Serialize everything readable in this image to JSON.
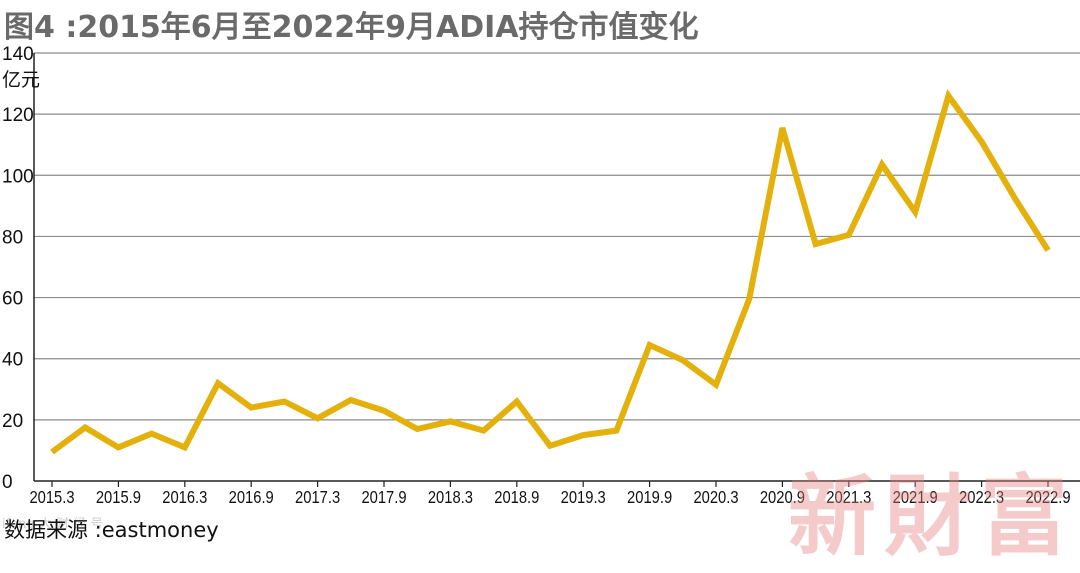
{
  "title": "图4 :2015年6月至2022年9月ADIA持仓市值变化",
  "source": "数据来源 :eastmoney",
  "watermark": "新財富",
  "watermark_small": "ifeng 大 财 经 号",
  "colors": {
    "line": "#E3B00C",
    "grid": "#8c8c8c",
    "title": "#6a6a6a"
  },
  "chart_data": {
    "type": "line",
    "title": "图4 :2015年6月至2022年9月ADIA持仓市值变化",
    "ylabel": "亿元",
    "xlabel": "",
    "ylim": [
      0,
      140
    ],
    "yticks": [
      0,
      20,
      40,
      60,
      80,
      100,
      120,
      140
    ],
    "xtick_labels": [
      "2015.3",
      "2015.9",
      "2016.3",
      "2016.9",
      "2017.3",
      "2017.9",
      "2018.3",
      "2018.9",
      "2019.3",
      "2019.9",
      "2020.3",
      "2020.9",
      "2021.3",
      "2021.9",
      "2022.3",
      "2022.9"
    ],
    "grid": true,
    "x": [
      "2015.3",
      "2015.6",
      "2015.9",
      "2015.12",
      "2016.3",
      "2016.6",
      "2016.9",
      "2016.12",
      "2017.3",
      "2017.6",
      "2017.9",
      "2017.12",
      "2018.3",
      "2018.6",
      "2018.9",
      "2018.12",
      "2019.3",
      "2019.6",
      "2019.9",
      "2019.12",
      "2020.3",
      "2020.6",
      "2020.9",
      "2020.12",
      "2021.3",
      "2021.6",
      "2021.9",
      "2021.12",
      "2022.3",
      "2022.6",
      "2022.9"
    ],
    "series": [
      {
        "values": [
          9.5,
          17.5,
          11,
          15.5,
          11,
          32,
          24,
          26,
          20.5,
          26.5,
          23,
          17,
          19.5,
          16.5,
          26,
          11.5,
          15,
          16.5,
          44.5,
          39.5,
          31.5,
          59.5,
          115.5,
          77.5,
          80.5,
          103.5,
          88,
          126,
          111,
          92.5,
          75.5
        ]
      }
    ]
  }
}
